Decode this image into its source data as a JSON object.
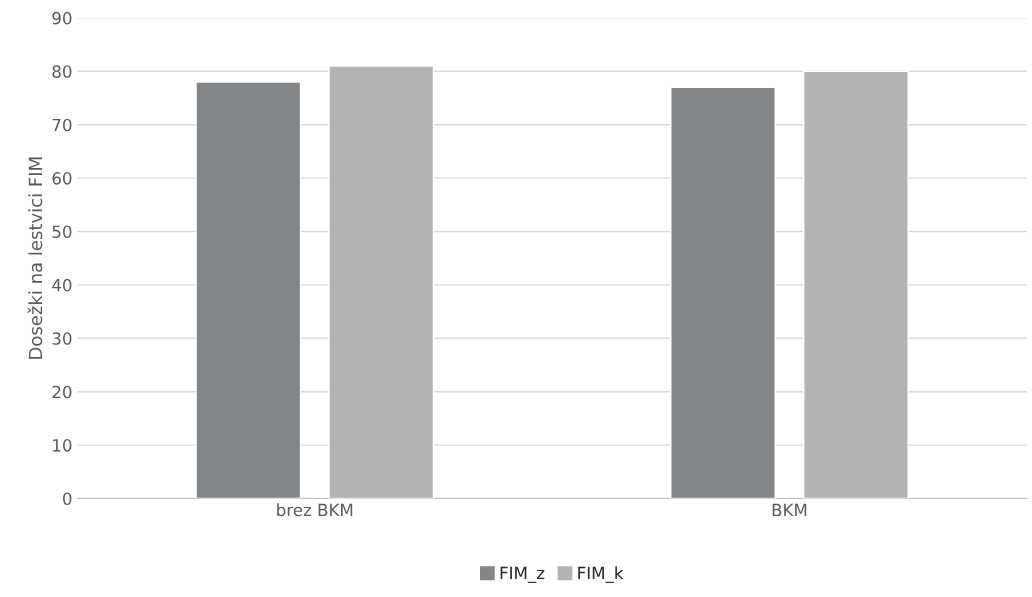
{
  "chart_data": {
    "type": "bar",
    "ylabel": "Dosežki na lestvici FIM",
    "categories": [
      "brez BKM",
      "BKM"
    ],
    "series": [
      {
        "name": "FIM_z",
        "color": "#838688",
        "values": [
          78,
          77
        ]
      },
      {
        "name": "FIM_k",
        "color": "#b1b3b4",
        "values": [
          81,
          80
        ]
      }
    ],
    "ylim": [
      0,
      90
    ],
    "yticks": [
      0,
      10,
      20,
      30,
      40,
      50,
      60,
      70,
      80,
      90
    ],
    "grid": "y",
    "legend": "bottom"
  }
}
